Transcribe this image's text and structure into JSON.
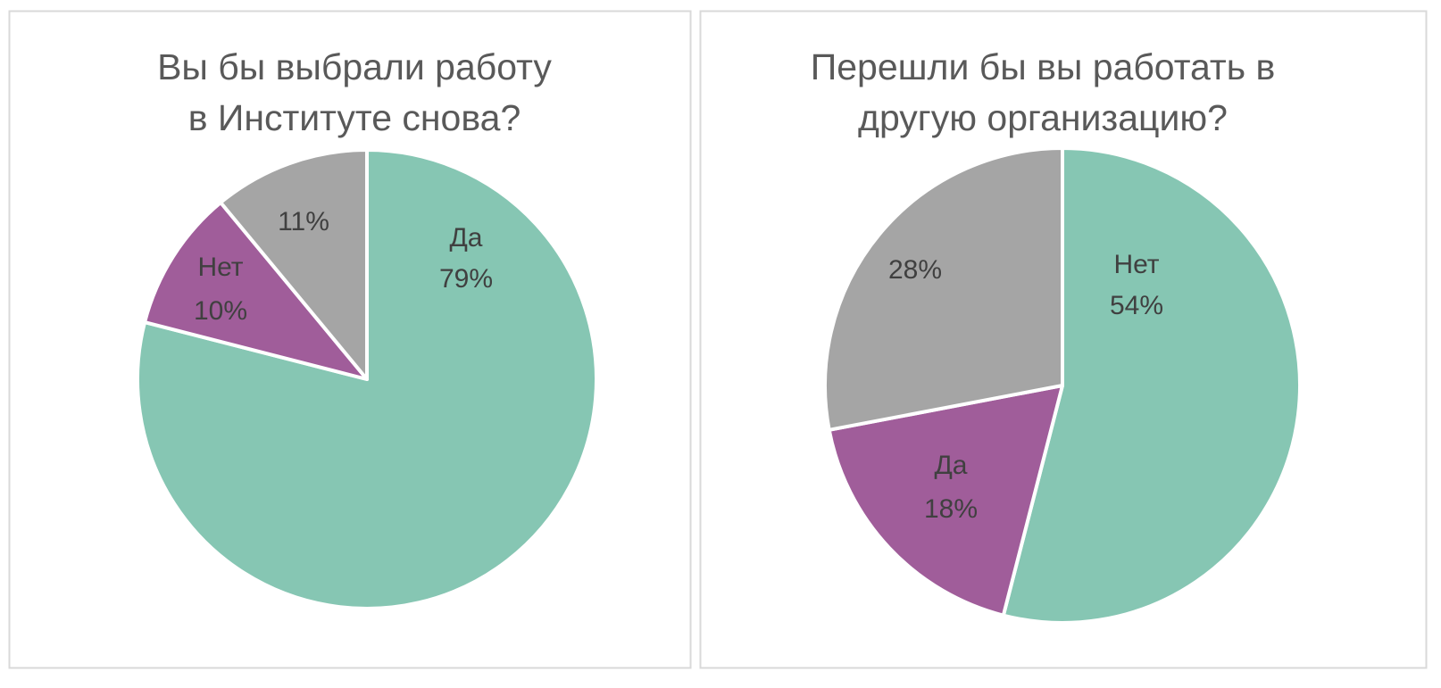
{
  "chart_data": [
    {
      "type": "pie",
      "title_lines": [
        "Вы бы выбрали работу",
        "в Институте снова?"
      ],
      "slices": [
        {
          "category": "Да",
          "value": 79,
          "value_label": "79%",
          "color": "#86C6B3"
        },
        {
          "category": "Нет",
          "value": 10,
          "value_label": "10%",
          "color": "#A05D9A"
        },
        {
          "category": "",
          "value": 11,
          "value_label": "11%",
          "color": "#A5A5A5"
        }
      ],
      "start": "12 o'clock",
      "direction": "clockwise",
      "legend": "none"
    },
    {
      "type": "pie",
      "title_lines": [
        "Перешли бы вы работать в",
        "другую организацию?"
      ],
      "slices": [
        {
          "category": "Нет",
          "value": 54,
          "value_label": "54%",
          "color": "#86C6B3"
        },
        {
          "category": "Да",
          "value": 18,
          "value_label": "18%",
          "color": "#A05D9A"
        },
        {
          "category": "",
          "value": 28,
          "value_label": "28%",
          "color": "#A5A5A5"
        }
      ],
      "start": "12 o'clock",
      "direction": "clockwise",
      "legend": "none"
    }
  ]
}
